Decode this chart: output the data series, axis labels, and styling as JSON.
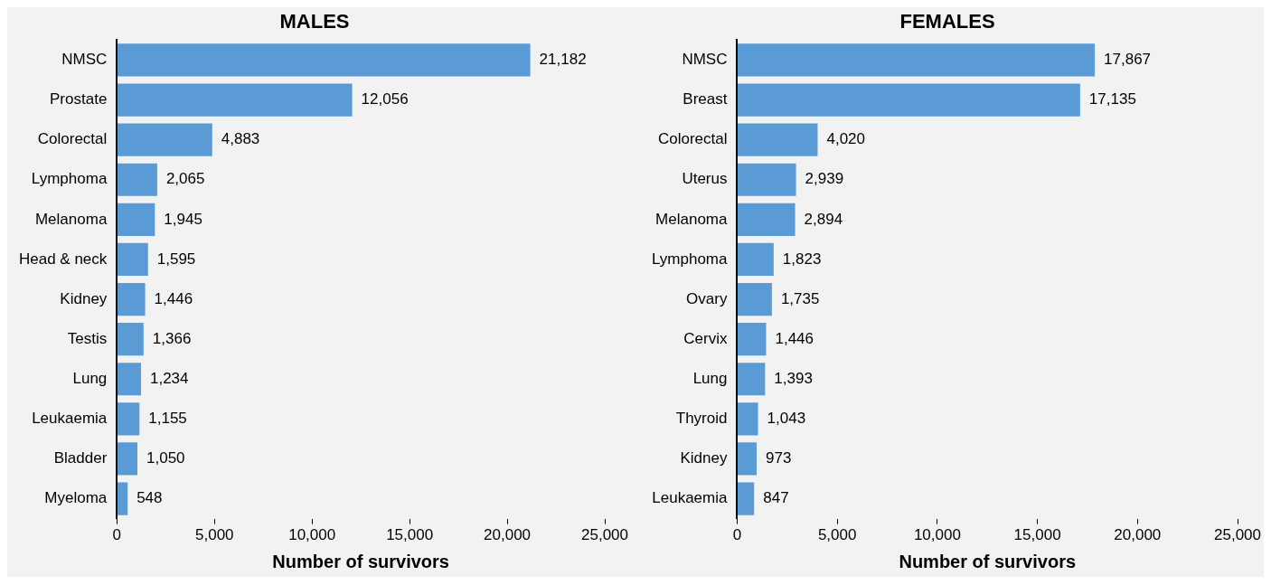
{
  "chart_data": [
    {
      "type": "bar",
      "orientation": "horizontal",
      "title": "MALES",
      "xlabel": "Number of survivors",
      "categories": [
        "NMSC",
        "Prostate",
        "Colorectal",
        "Lymphoma",
        "Melanoma",
        "Head & neck",
        "Kidney",
        "Testis",
        "Lung",
        "Leukaemia",
        "Bladder",
        "Myeloma"
      ],
      "values": [
        21182,
        12056,
        4883,
        2065,
        1945,
        1595,
        1446,
        1366,
        1234,
        1155,
        1050,
        548
      ],
      "value_labels": [
        "21,182",
        "12,056",
        "4,883",
        "2,065",
        "1,945",
        "1,595",
        "1,446",
        "1,366",
        "1,234",
        "1,155",
        "1,050",
        "548"
      ],
      "color": "#5b9bd5",
      "grid": false,
      "legend": false,
      "xlim": [
        0,
        25000
      ],
      "xticks": [
        0,
        {
          "value": 5000,
          "label": "5,000"
        },
        {
          "value": 10000,
          "label": "10,000"
        },
        {
          "value": 15000,
          "label": "15,000"
        },
        {
          "value": 20000,
          "label": "20,000"
        },
        {
          "value": 25000,
          "label": "25,000"
        }
      ]
    },
    {
      "type": "bar",
      "orientation": "horizontal",
      "title": "FEMALES",
      "xlabel": "Number of survivors",
      "categories": [
        "NMSC",
        "Breast",
        "Colorectal",
        "Uterus",
        "Melanoma",
        "Lymphoma",
        "Ovary",
        "Cervix",
        "Lung",
        "Thyroid",
        "Kidney",
        "Leukaemia"
      ],
      "values": [
        17867,
        17135,
        4020,
        2939,
        2894,
        1823,
        1735,
        1446,
        1393,
        1043,
        973,
        847
      ],
      "value_labels": [
        "17,867",
        "17,135",
        "4,020",
        "2,939",
        "2,894",
        "1,823",
        "1,735",
        "1,446",
        "1,393",
        "1,043",
        "973",
        "847"
      ],
      "color": "#5b9bd5",
      "grid": false,
      "legend": false,
      "xlim": [
        0,
        25000
      ],
      "xticks": [
        0,
        {
          "value": 5000,
          "label": "5,000"
        },
        {
          "value": 10000,
          "label": "10,000"
        },
        {
          "value": 15000,
          "label": "15,000"
        },
        {
          "value": 20000,
          "label": "20,000"
        },
        {
          "value": 25000,
          "label": "25,000"
        }
      ]
    }
  ]
}
